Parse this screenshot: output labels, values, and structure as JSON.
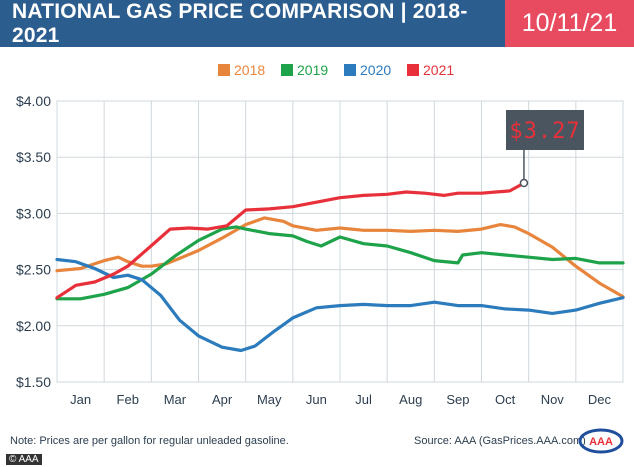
{
  "header": {
    "title": "NATIONAL GAS PRICE COMPARISON | 2018-2021",
    "date": "10/11/21"
  },
  "footer": {
    "note": "Note: Prices are per gallon for regular unleaded gasoline.",
    "source": "Source: AAA (GasPrices.AAA.com)",
    "logo_text": "AAA",
    "credit": "© AAA"
  },
  "colors": {
    "header_bg": "#2c5d8f",
    "date_bg": "#e84a5f",
    "grid": "#cfd8dc",
    "axis_text": "#2c3e50",
    "callout_bg": "#4a5560",
    "callout_text": "#e8303a"
  },
  "chart_data": {
    "type": "line",
    "title": "",
    "xlabel": "",
    "ylabel": "",
    "categories": [
      "Jan",
      "Feb",
      "Mar",
      "Apr",
      "May",
      "Jun",
      "Jul",
      "Aug",
      "Sep",
      "Oct",
      "Nov",
      "Dec"
    ],
    "y_ticks": [
      "$1.50",
      "$2.00",
      "$2.50",
      "$3.00",
      "$3.50",
      "$4.00"
    ],
    "ylim": [
      1.5,
      4.0
    ],
    "xlim": [
      0,
      12
    ],
    "grid": true,
    "legend_position": "top-center",
    "annotation": {
      "label": "$3.27",
      "x": 9.9,
      "y": 3.27,
      "series": "2021"
    },
    "series": [
      {
        "name": "2018",
        "color": "#e8853d",
        "points": [
          [
            0.0,
            2.49
          ],
          [
            0.5,
            2.51
          ],
          [
            1.0,
            2.58
          ],
          [
            1.3,
            2.61
          ],
          [
            1.5,
            2.57
          ],
          [
            1.8,
            2.53
          ],
          [
            2.0,
            2.53
          ],
          [
            2.3,
            2.55
          ],
          [
            2.6,
            2.6
          ],
          [
            3.0,
            2.67
          ],
          [
            3.5,
            2.78
          ],
          [
            4.0,
            2.9
          ],
          [
            4.4,
            2.96
          ],
          [
            4.8,
            2.93
          ],
          [
            5.0,
            2.89
          ],
          [
            5.5,
            2.85
          ],
          [
            6.0,
            2.87
          ],
          [
            6.5,
            2.85
          ],
          [
            7.0,
            2.85
          ],
          [
            7.5,
            2.84
          ],
          [
            8.0,
            2.85
          ],
          [
            8.5,
            2.84
          ],
          [
            9.0,
            2.86
          ],
          [
            9.4,
            2.9
          ],
          [
            9.7,
            2.88
          ],
          [
            10.0,
            2.82
          ],
          [
            10.5,
            2.7
          ],
          [
            11.0,
            2.53
          ],
          [
            11.5,
            2.38
          ],
          [
            12.0,
            2.26
          ]
        ]
      },
      {
        "name": "2019",
        "color": "#1ea34a",
        "points": [
          [
            0.0,
            2.24
          ],
          [
            0.5,
            2.24
          ],
          [
            1.0,
            2.28
          ],
          [
            1.5,
            2.34
          ],
          [
            2.0,
            2.46
          ],
          [
            2.5,
            2.62
          ],
          [
            3.0,
            2.76
          ],
          [
            3.5,
            2.86
          ],
          [
            3.8,
            2.88
          ],
          [
            4.0,
            2.86
          ],
          [
            4.5,
            2.82
          ],
          [
            5.0,
            2.8
          ],
          [
            5.3,
            2.75
          ],
          [
            5.6,
            2.71
          ],
          [
            6.0,
            2.79
          ],
          [
            6.5,
            2.73
          ],
          [
            7.0,
            2.71
          ],
          [
            7.5,
            2.65
          ],
          [
            8.0,
            2.58
          ],
          [
            8.5,
            2.56
          ],
          [
            8.6,
            2.63
          ],
          [
            9.0,
            2.65
          ],
          [
            9.5,
            2.63
          ],
          [
            10.0,
            2.61
          ],
          [
            10.5,
            2.59
          ],
          [
            11.0,
            2.6
          ],
          [
            11.5,
            2.56
          ],
          [
            12.0,
            2.56
          ]
        ]
      },
      {
        "name": "2020",
        "color": "#2b7bbd",
        "points": [
          [
            0.0,
            2.59
          ],
          [
            0.4,
            2.57
          ],
          [
            0.8,
            2.51
          ],
          [
            1.2,
            2.43
          ],
          [
            1.5,
            2.45
          ],
          [
            1.8,
            2.41
          ],
          [
            2.2,
            2.27
          ],
          [
            2.6,
            2.05
          ],
          [
            3.0,
            1.91
          ],
          [
            3.5,
            1.81
          ],
          [
            3.9,
            1.78
          ],
          [
            4.2,
            1.82
          ],
          [
            4.6,
            1.95
          ],
          [
            5.0,
            2.07
          ],
          [
            5.5,
            2.16
          ],
          [
            6.0,
            2.18
          ],
          [
            6.5,
            2.19
          ],
          [
            7.0,
            2.18
          ],
          [
            7.5,
            2.18
          ],
          [
            8.0,
            2.21
          ],
          [
            8.5,
            2.18
          ],
          [
            9.0,
            2.18
          ],
          [
            9.5,
            2.15
          ],
          [
            10.0,
            2.14
          ],
          [
            10.5,
            2.11
          ],
          [
            11.0,
            2.14
          ],
          [
            11.5,
            2.2
          ],
          [
            12.0,
            2.25
          ]
        ]
      },
      {
        "name": "2021",
        "color": "#e8303a",
        "points": [
          [
            0.0,
            2.25
          ],
          [
            0.4,
            2.36
          ],
          [
            0.8,
            2.39
          ],
          [
            1.2,
            2.46
          ],
          [
            1.5,
            2.53
          ],
          [
            1.8,
            2.64
          ],
          [
            2.1,
            2.75
          ],
          [
            2.4,
            2.86
          ],
          [
            2.8,
            2.87
          ],
          [
            3.2,
            2.86
          ],
          [
            3.6,
            2.89
          ],
          [
            4.0,
            3.03
          ],
          [
            4.5,
            3.04
          ],
          [
            5.0,
            3.06
          ],
          [
            5.5,
            3.1
          ],
          [
            6.0,
            3.14
          ],
          [
            6.5,
            3.16
          ],
          [
            7.0,
            3.17
          ],
          [
            7.4,
            3.19
          ],
          [
            7.8,
            3.18
          ],
          [
            8.2,
            3.16
          ],
          [
            8.5,
            3.18
          ],
          [
            9.0,
            3.18
          ],
          [
            9.3,
            3.19
          ],
          [
            9.6,
            3.2
          ],
          [
            9.9,
            3.27
          ]
        ]
      }
    ]
  }
}
